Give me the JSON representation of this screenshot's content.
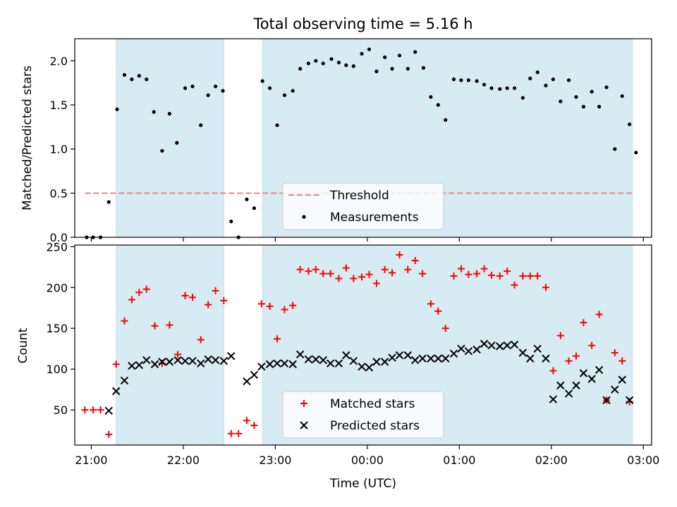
{
  "chart_data": [
    {
      "type": "scatter",
      "title": "Total observing time = 5.16 h",
      "xlabel": "",
      "ylabel": "Matched/Predicted stars",
      "x_unit": "hours after 21:00 UTC",
      "xlim": [
        -0.18,
        6.09
      ],
      "ylim": [
        0,
        2.25
      ],
      "yticks": [
        0.0,
        0.5,
        1.0,
        1.5,
        2.0
      ],
      "yticklabels": [
        "0.0",
        "0.5",
        "1.0",
        "1.5",
        "2.0"
      ],
      "shaded_intervals": [
        [
          0.27,
          1.44
        ],
        [
          1.86,
          5.88
        ]
      ],
      "shade_color": "#add8e6",
      "grid": false,
      "legend": {
        "placement": "lower center"
      },
      "series": [
        {
          "name": "Threshold",
          "kind": "dashed-line",
          "color": "#f08080",
          "x": [
            -0.07,
            5.88
          ],
          "y": [
            0.5,
            0.5
          ]
        },
        {
          "name": "Measurements",
          "kind": "dot",
          "color": "#000000",
          "points": [
            [
              -0.05,
              0.0
            ],
            [
              0.02,
              0.0
            ],
            [
              0.1,
              0.0
            ],
            [
              0.19,
              0.4
            ],
            [
              0.28,
              1.45
            ],
            [
              0.36,
              1.84
            ],
            [
              0.44,
              1.79
            ],
            [
              0.52,
              1.83
            ],
            [
              0.6,
              1.79
            ],
            [
              0.68,
              1.42
            ],
            [
              0.77,
              0.98
            ],
            [
              0.85,
              1.4
            ],
            [
              0.93,
              1.07
            ],
            [
              1.02,
              1.69
            ],
            [
              1.1,
              1.71
            ],
            [
              1.19,
              1.27
            ],
            [
              1.27,
              1.61
            ],
            [
              1.35,
              1.71
            ],
            [
              1.43,
              1.66
            ],
            [
              1.52,
              0.18
            ],
            [
              1.6,
              0.0
            ],
            [
              1.69,
              0.43
            ],
            [
              1.77,
              0.33
            ],
            [
              1.86,
              1.77
            ],
            [
              1.94,
              1.69
            ],
            [
              2.02,
              1.27
            ],
            [
              2.1,
              1.61
            ],
            [
              2.19,
              1.66
            ],
            [
              2.27,
              1.91
            ],
            [
              2.36,
              1.97
            ],
            [
              2.44,
              2.0
            ],
            [
              2.52,
              1.97
            ],
            [
              2.61,
              2.02
            ],
            [
              2.69,
              1.98
            ],
            [
              2.77,
              1.95
            ],
            [
              2.85,
              1.94
            ],
            [
              2.94,
              2.08
            ],
            [
              3.02,
              2.13
            ],
            [
              3.1,
              1.88
            ],
            [
              3.19,
              2.04
            ],
            [
              3.27,
              1.91
            ],
            [
              3.35,
              2.06
            ],
            [
              3.44,
              1.91
            ],
            [
              3.52,
              2.1
            ],
            [
              3.61,
              1.92
            ],
            [
              3.69,
              1.59
            ],
            [
              3.77,
              1.5
            ],
            [
              3.85,
              1.33
            ],
            [
              3.94,
              1.79
            ],
            [
              4.02,
              1.78
            ],
            [
              4.1,
              1.78
            ],
            [
              4.19,
              1.77
            ],
            [
              4.27,
              1.73
            ],
            [
              4.35,
              1.69
            ],
            [
              4.44,
              1.68
            ],
            [
              4.52,
              1.69
            ],
            [
              4.6,
              1.69
            ],
            [
              4.69,
              1.58
            ],
            [
              4.77,
              1.8
            ],
            [
              4.85,
              1.87
            ],
            [
              4.94,
              1.72
            ],
            [
              5.02,
              1.79
            ],
            [
              5.1,
              1.54
            ],
            [
              5.19,
              1.78
            ],
            [
              5.27,
              1.59
            ],
            [
              5.35,
              1.48
            ],
            [
              5.44,
              1.65
            ],
            [
              5.52,
              1.48
            ],
            [
              5.6,
              1.7
            ],
            [
              5.69,
              1.0
            ],
            [
              5.77,
              1.6
            ],
            [
              5.85,
              1.28
            ],
            [
              5.92,
              0.96
            ]
          ]
        }
      ]
    },
    {
      "type": "scatter",
      "title": "",
      "xlabel": "Time (UTC)",
      "ylabel": "Count",
      "x_unit": "hours after 21:00 UTC",
      "xlim": [
        -0.18,
        6.09
      ],
      "ylim": [
        7,
        252
      ],
      "xticks": [
        0,
        1,
        2,
        3,
        4,
        5,
        6
      ],
      "xticklabels": [
        "21:00",
        "22:00",
        "23:00",
        "00:00",
        "01:00",
        "02:00",
        "03:00"
      ],
      "yticks": [
        50,
        100,
        150,
        200,
        250
      ],
      "yticklabels": [
        "50",
        "100",
        "150",
        "200",
        "250"
      ],
      "shaded_intervals": [
        [
          0.27,
          1.44
        ],
        [
          1.86,
          5.88
        ]
      ],
      "shade_color": "#add8e6",
      "grid": false,
      "legend": {
        "placement": "lower center"
      },
      "series": [
        {
          "name": "Matched stars",
          "kind": "plus",
          "color": "#ff0000",
          "points": [
            [
              -0.07,
              50
            ],
            [
              0.02,
              50
            ],
            [
              0.1,
              50
            ],
            [
              0.19,
              20
            ],
            [
              0.27,
              106
            ],
            [
              0.36,
              159
            ],
            [
              0.44,
              185
            ],
            [
              0.52,
              194
            ],
            [
              0.6,
              198
            ],
            [
              0.69,
              153
            ],
            [
              0.77,
              107
            ],
            [
              0.85,
              154
            ],
            [
              0.94,
              118
            ],
            [
              1.02,
              190
            ],
            [
              1.1,
              188
            ],
            [
              1.19,
              136
            ],
            [
              1.27,
              179
            ],
            [
              1.35,
              196
            ],
            [
              1.44,
              184
            ],
            [
              1.52,
              21
            ],
            [
              1.6,
              21
            ],
            [
              1.69,
              37
            ],
            [
              1.77,
              31
            ],
            [
              1.85,
              180
            ],
            [
              1.94,
              177
            ],
            [
              2.02,
              137
            ],
            [
              2.1,
              173
            ],
            [
              2.19,
              178
            ],
            [
              2.27,
              222
            ],
            [
              2.36,
              220
            ],
            [
              2.44,
              222
            ],
            [
              2.52,
              217
            ],
            [
              2.6,
              217
            ],
            [
              2.69,
              211
            ],
            [
              2.77,
              224
            ],
            [
              2.85,
              211
            ],
            [
              2.94,
              213
            ],
            [
              3.02,
              216
            ],
            [
              3.1,
              205
            ],
            [
              3.19,
              222
            ],
            [
              3.27,
              218
            ],
            [
              3.35,
              240
            ],
            [
              3.44,
              222
            ],
            [
              3.52,
              233
            ],
            [
              3.6,
              217
            ],
            [
              3.69,
              180
            ],
            [
              3.77,
              171
            ],
            [
              3.85,
              150
            ],
            [
              3.94,
              214
            ],
            [
              4.02,
              223
            ],
            [
              4.1,
              216
            ],
            [
              4.19,
              217
            ],
            [
              4.27,
              223
            ],
            [
              4.35,
              215
            ],
            [
              4.44,
              214
            ],
            [
              4.52,
              220
            ],
            [
              4.6,
              203
            ],
            [
              4.69,
              214
            ],
            [
              4.77,
              214
            ],
            [
              4.85,
              214
            ],
            [
              4.94,
              200
            ],
            [
              5.02,
              98
            ],
            [
              5.1,
              141
            ],
            [
              5.19,
              110
            ],
            [
              5.27,
              116
            ],
            [
              5.35,
              157
            ],
            [
              5.44,
              129
            ],
            [
              5.52,
              167
            ],
            [
              5.6,
              62
            ],
            [
              5.69,
              120
            ],
            [
              5.77,
              110
            ],
            [
              5.85,
              60
            ]
          ]
        },
        {
          "name": "Predicted stars",
          "kind": "x",
          "color": "#000000",
          "points": [
            [
              0.19,
              49
            ],
            [
              0.27,
              73
            ],
            [
              0.36,
              86
            ],
            [
              0.44,
              104
            ],
            [
              0.52,
              105
            ],
            [
              0.6,
              111
            ],
            [
              0.69,
              106
            ],
            [
              0.77,
              109
            ],
            [
              0.85,
              109
            ],
            [
              0.94,
              111
            ],
            [
              1.02,
              110
            ],
            [
              1.1,
              110
            ],
            [
              1.19,
              107
            ],
            [
              1.27,
              112
            ],
            [
              1.35,
              111
            ],
            [
              1.44,
              110
            ],
            [
              1.52,
              116
            ],
            [
              1.69,
              85
            ],
            [
              1.77,
              93
            ],
            [
              1.85,
              103
            ],
            [
              1.94,
              106
            ],
            [
              2.02,
              107
            ],
            [
              2.1,
              107
            ],
            [
              2.19,
              106
            ],
            [
              2.27,
              118
            ],
            [
              2.36,
              112
            ],
            [
              2.44,
              112
            ],
            [
              2.52,
              111
            ],
            [
              2.6,
              107
            ],
            [
              2.69,
              107
            ],
            [
              2.77,
              117
            ],
            [
              2.85,
              110
            ],
            [
              2.94,
              103
            ],
            [
              3.02,
              102
            ],
            [
              3.1,
              109
            ],
            [
              3.19,
              109
            ],
            [
              3.27,
              114
            ],
            [
              3.35,
              117
            ],
            [
              3.44,
              117
            ],
            [
              3.52,
              111
            ],
            [
              3.6,
              113
            ],
            [
              3.69,
              113
            ],
            [
              3.77,
              113
            ],
            [
              3.85,
              113
            ],
            [
              3.94,
              119
            ],
            [
              4.02,
              125
            ],
            [
              4.1,
              122
            ],
            [
              4.19,
              124
            ],
            [
              4.27,
              131
            ],
            [
              4.35,
              129
            ],
            [
              4.44,
              128
            ],
            [
              4.52,
              129
            ],
            [
              4.6,
              130
            ],
            [
              4.69,
              120
            ],
            [
              4.77,
              113
            ],
            [
              4.85,
              125
            ],
            [
              4.94,
              113
            ],
            [
              5.02,
              63
            ],
            [
              5.1,
              80
            ],
            [
              5.19,
              70
            ],
            [
              5.27,
              80
            ],
            [
              5.35,
              95
            ],
            [
              5.44,
              88
            ],
            [
              5.52,
              99
            ],
            [
              5.6,
              62
            ],
            [
              5.69,
              75
            ],
            [
              5.77,
              87
            ],
            [
              5.85,
              62
            ]
          ]
        }
      ]
    }
  ]
}
